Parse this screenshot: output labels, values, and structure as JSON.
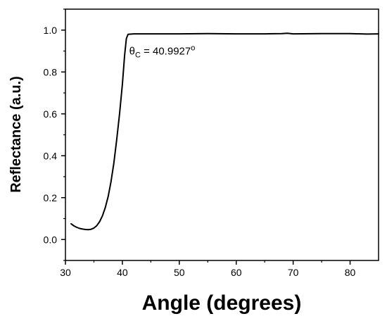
{
  "chart_data": {
    "type": "line",
    "title": "",
    "xlabel": "Angle (degrees)",
    "ylabel": "Reflectance (a.u.)",
    "xlim": [
      30,
      85
    ],
    "ylim": [
      -0.1,
      1.1
    ],
    "xticks": [
      30,
      40,
      50,
      60,
      70,
      80
    ],
    "yticks": [
      0.0,
      0.2,
      0.4,
      0.6,
      0.8,
      1.0
    ],
    "xtick_labels": [
      "30",
      "40",
      "50",
      "60",
      "70",
      "80"
    ],
    "ytick_labels": [
      "0.0",
      "0.2",
      "0.4",
      "0.6",
      "0.8",
      "1.0"
    ],
    "grid": false,
    "legend": "none",
    "line_color": "#000000",
    "annotation": {
      "symbol": "θ",
      "subscript": "C",
      "text": " = 40.9927",
      "superscript": "o",
      "x": 41.2,
      "y": 0.9
    },
    "series": [
      {
        "points": [
          [
            31.0,
            0.075
          ],
          [
            31.5,
            0.065
          ],
          [
            32.0,
            0.058
          ],
          [
            32.5,
            0.053
          ],
          [
            33.0,
            0.05
          ],
          [
            33.5,
            0.048
          ],
          [
            34.0,
            0.047
          ],
          [
            34.5,
            0.049
          ],
          [
            35.0,
            0.055
          ],
          [
            35.5,
            0.066
          ],
          [
            36.0,
            0.085
          ],
          [
            36.5,
            0.113
          ],
          [
            37.0,
            0.152
          ],
          [
            37.5,
            0.205
          ],
          [
            38.0,
            0.275
          ],
          [
            38.5,
            0.365
          ],
          [
            39.0,
            0.475
          ],
          [
            39.5,
            0.6
          ],
          [
            40.0,
            0.74
          ],
          [
            40.4,
            0.88
          ],
          [
            40.7,
            0.96
          ],
          [
            41.0,
            0.98
          ],
          [
            42.0,
            0.982
          ],
          [
            45.0,
            0.982
          ],
          [
            50.0,
            0.982
          ],
          [
            55.0,
            0.983
          ],
          [
            60.0,
            0.982
          ],
          [
            65.0,
            0.982
          ],
          [
            68.0,
            0.983
          ],
          [
            69.0,
            0.985
          ],
          [
            70.0,
            0.982
          ],
          [
            75.0,
            0.983
          ],
          [
            80.0,
            0.983
          ],
          [
            83.0,
            0.981
          ],
          [
            85.0,
            0.982
          ]
        ]
      }
    ]
  }
}
